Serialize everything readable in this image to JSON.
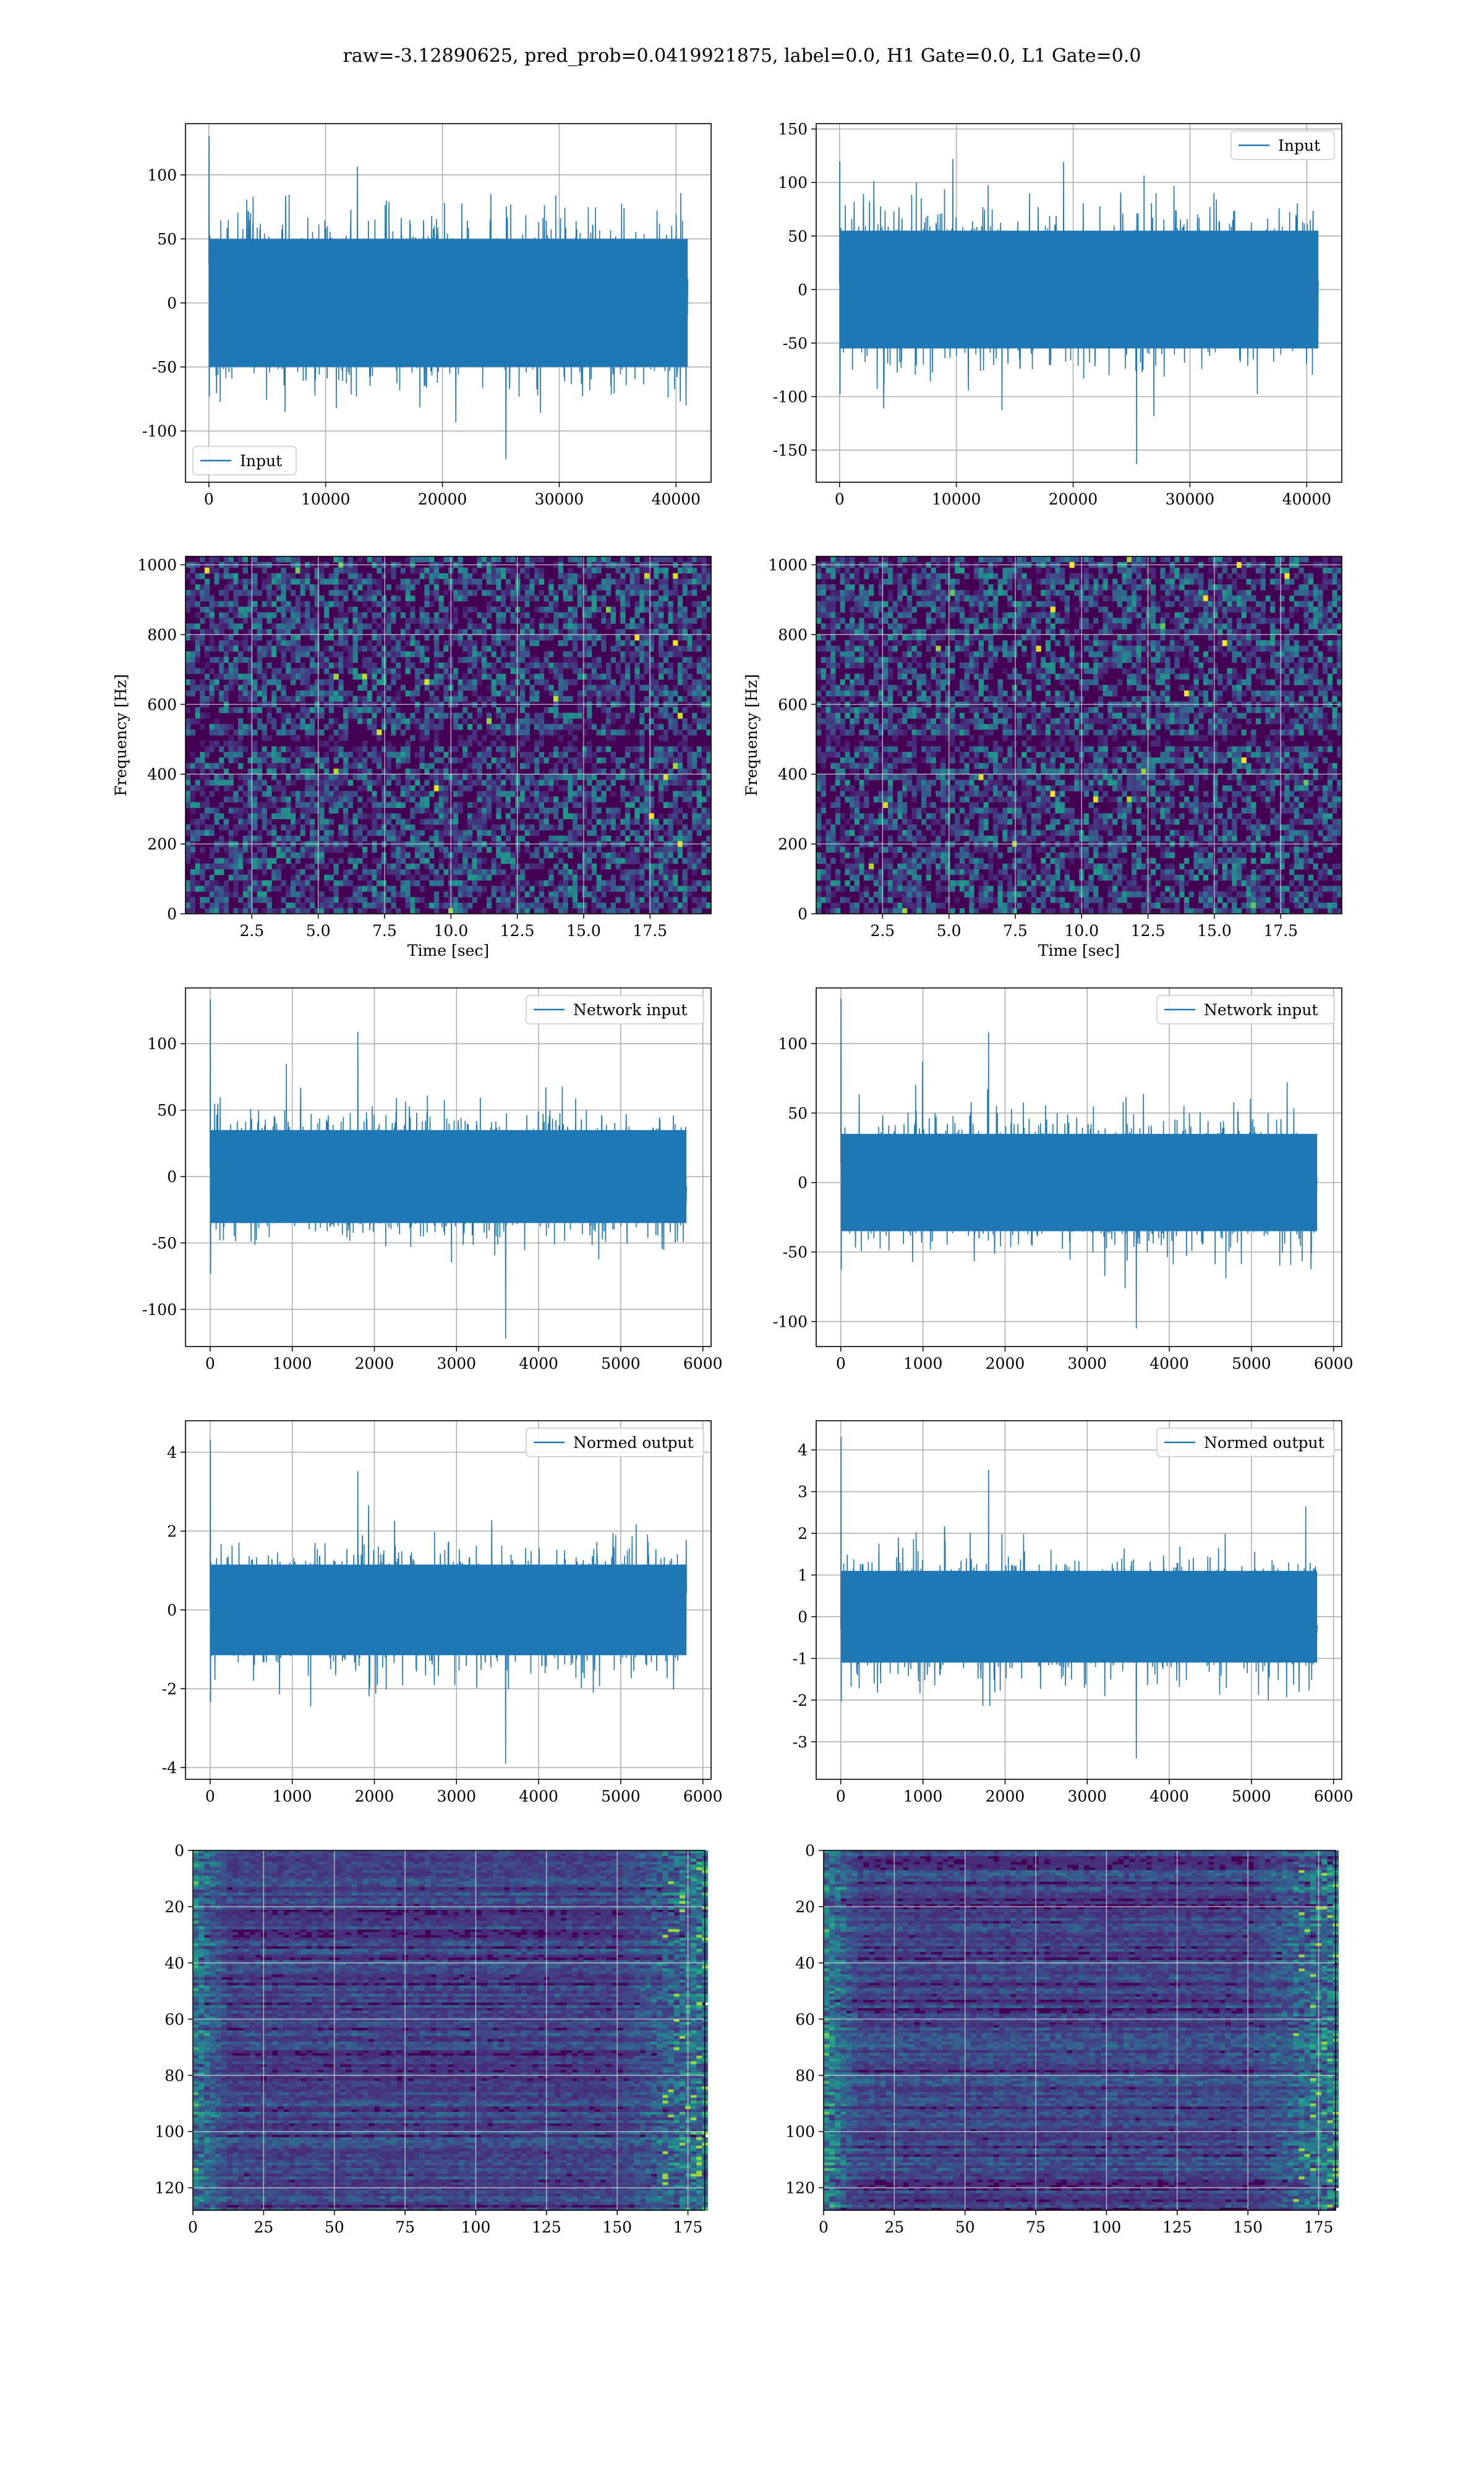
{
  "suptitle": "raw=-3.12890625, pred_prob=0.0419921875, label=0.0, H1 Gate=0.0, L1 Gate=0.0",
  "colors": {
    "line": "#1f77b4",
    "grid": "#b0b0b0",
    "viridis_dark": "#440154",
    "viridis_mid": "#21918c",
    "viridis_bright": "#fde725"
  },
  "chart_data": [
    {
      "id": "raw-h1",
      "type": "line",
      "x": [
        0,
        41000
      ],
      "xlim": [
        -2000,
        43000
      ],
      "ylim": [
        -140,
        140
      ],
      "xticks": [
        0,
        10000,
        20000,
        30000,
        40000
      ],
      "yticks": [
        -100,
        -50,
        0,
        50,
        100
      ],
      "envelope": 50,
      "ymax_observed": 133,
      "ymin_observed": -122,
      "legend": "Input",
      "legend_loc": "lower left",
      "grid": true
    },
    {
      "id": "raw-l1",
      "type": "line",
      "x": [
        0,
        41000
      ],
      "xlim": [
        -2000,
        43000
      ],
      "ylim": [
        -180,
        155
      ],
      "xticks": [
        0,
        10000,
        20000,
        30000,
        40000
      ],
      "yticks": [
        -150,
        -100,
        -50,
        0,
        50,
        100,
        150
      ],
      "envelope": 55,
      "ymax_observed": 122,
      "ymin_observed": -163,
      "legend": "Input",
      "legend_loc": "upper right",
      "grid": true
    },
    {
      "id": "spec-h1",
      "type": "heatmap",
      "xlim": [
        0,
        19.8
      ],
      "ylim": [
        0,
        1024
      ],
      "xticks": [
        "2.5",
        "5.0",
        "7.5",
        "10.0",
        "12.5",
        "15.0",
        "17.5"
      ],
      "yticks": [
        "0",
        "200",
        "400",
        "600",
        "800",
        "1000"
      ],
      "xlabel": "Time [sec]",
      "ylabel": "Frequency [Hz]",
      "grid": true
    },
    {
      "id": "spec-l1",
      "type": "heatmap",
      "xlim": [
        0,
        19.8
      ],
      "ylim": [
        0,
        1024
      ],
      "xticks": [
        "2.5",
        "5.0",
        "7.5",
        "10.0",
        "12.5",
        "15.0",
        "17.5"
      ],
      "yticks": [
        "0",
        "200",
        "400",
        "600",
        "800",
        "1000"
      ],
      "xlabel": "Time [sec]",
      "ylabel": "Frequency [Hz]",
      "grid": true
    },
    {
      "id": "net-h1",
      "type": "line",
      "x": [
        0,
        5800
      ],
      "xlim": [
        -300,
        6100
      ],
      "ylim": [
        -128,
        142
      ],
      "xticks": [
        0,
        1000,
        2000,
        3000,
        4000,
        5000,
        6000
      ],
      "yticks": [
        -100,
        -50,
        0,
        50,
        100
      ],
      "envelope": 35,
      "ymax_observed": 136,
      "ymin_observed": -122,
      "legend": "Network input",
      "legend_loc": "upper right",
      "grid": true
    },
    {
      "id": "net-l1",
      "type": "line",
      "x": [
        0,
        5800
      ],
      "xlim": [
        -300,
        6100
      ],
      "ylim": [
        -118,
        140
      ],
      "xticks": [
        0,
        1000,
        2000,
        3000,
        4000,
        5000,
        6000
      ],
      "yticks": [
        -100,
        -50,
        0,
        50,
        100
      ],
      "envelope": 35,
      "ymax_observed": 135,
      "ymin_observed": -105,
      "legend": "Network input",
      "legend_loc": "upper right",
      "grid": true
    },
    {
      "id": "norm-h1",
      "type": "line",
      "x": [
        0,
        5800
      ],
      "xlim": [
        -300,
        6100
      ],
      "ylim": [
        -4.3,
        4.8
      ],
      "xticks": [
        0,
        1000,
        2000,
        3000,
        4000,
        5000,
        6000
      ],
      "yticks": [
        -4,
        -2,
        0,
        2,
        4
      ],
      "envelope": 1.15,
      "ymax_observed": 4.4,
      "ymin_observed": -3.9,
      "legend": "Normed output",
      "legend_loc": "upper right",
      "grid": true
    },
    {
      "id": "norm-l1",
      "type": "line",
      "x": [
        0,
        5800
      ],
      "xlim": [
        -300,
        6100
      ],
      "ylim": [
        -3.9,
        4.7
      ],
      "xticks": [
        0,
        1000,
        2000,
        3000,
        4000,
        5000,
        6000
      ],
      "yticks": [
        -3,
        -2,
        -1,
        0,
        1,
        2,
        3,
        4
      ],
      "envelope": 1.1,
      "ymax_observed": 4.4,
      "ymin_observed": -3.4,
      "legend": "Normed output",
      "legend_loc": "upper right",
      "grid": true
    },
    {
      "id": "feat-h1",
      "type": "heatmap",
      "xlim": [
        0,
        181
      ],
      "ylim": [
        128,
        0
      ],
      "xticks": [
        "0",
        "25",
        "50",
        "75",
        "100",
        "125",
        "150",
        "175"
      ],
      "yticks": [
        "0",
        "20",
        "40",
        "60",
        "80",
        "100",
        "120"
      ],
      "grid": true
    },
    {
      "id": "feat-l1",
      "type": "heatmap",
      "xlim": [
        0,
        181
      ],
      "ylim": [
        128,
        0
      ],
      "xticks": [
        "0",
        "25",
        "50",
        "75",
        "100",
        "125",
        "150",
        "175"
      ],
      "yticks": [
        "0",
        "20",
        "40",
        "60",
        "80",
        "100",
        "120"
      ],
      "grid": true
    }
  ]
}
